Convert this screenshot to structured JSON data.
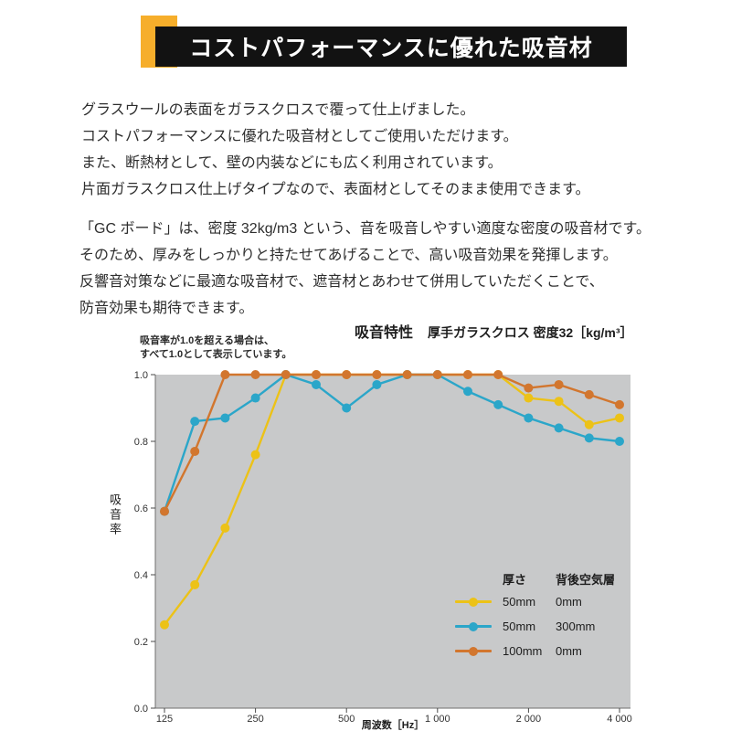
{
  "colors": {
    "accent": "#f6ae2b",
    "title_bg": "#121212"
  },
  "header": {
    "title": "コストパフォーマンスに優れた吸音材"
  },
  "intro": {
    "lines": [
      "グラスウールの表面をガラスクロスで覆って仕上げました。",
      "コストパフォーマンスに優れた吸音材としてご使用いただけます。",
      "また、断熱材として、壁の内装などにも広く利用されています。",
      "片面ガラスクロス仕上げタイプなので、表面材としてそのまま使用できます。"
    ]
  },
  "description": {
    "lines": [
      "「GC ボード」は、密度 32kg/m3 という、音を吸音しやすい適度な密度の吸音材です。",
      "そのため、厚みをしっかりと持たせてあげることで、高い吸音効果を発揮します。",
      "反響音対策などに最適な吸音材で、遮音材とあわせて併用していただくことで、",
      "防音効果も期待できます。"
    ]
  },
  "chart": {
    "title_main": "吸音特性",
    "title_sub": "厚手ガラスクロス 密度32［kg/m³］",
    "note_lines": [
      "吸音率が1.0を超える場合は、",
      "すべて1.0として表示しています。"
    ],
    "ylabel": "吸音率",
    "xlabel": "周波数［Hz］",
    "legend": {
      "thickness_header": "厚さ",
      "air_header": "背後空気層",
      "rows": [
        {
          "thickness": "50mm",
          "air": "0mm"
        },
        {
          "thickness": "50mm",
          "air": "300mm"
        },
        {
          "thickness": "100mm",
          "air": "0mm"
        }
      ]
    }
  },
  "chart_data": {
    "type": "line",
    "title": "吸音特性 厚手ガラスクロス 密度32［kg/m³］",
    "xlabel": "周波数［Hz］",
    "ylabel": "吸音率",
    "x_scale": "log (1/3 octave bands)",
    "plot_bg": "#c8c9ca",
    "grid": false,
    "legend_position": "inside bottom-right",
    "x": [
      125,
      160,
      200,
      250,
      315,
      400,
      500,
      630,
      800,
      1000,
      1250,
      1600,
      2000,
      2500,
      3150,
      4000
    ],
    "ylim": [
      0,
      1.0
    ],
    "x_ticks": [
      {
        "f": 125,
        "label": "125"
      },
      {
        "f": 250,
        "label": "250"
      },
      {
        "f": 500,
        "label": "500"
      },
      {
        "f": 1000,
        "label": "1 000"
      },
      {
        "f": 2000,
        "label": "2 000"
      },
      {
        "f": 4000,
        "label": "4 000"
      }
    ],
    "y_ticks": [
      {
        "v": 0,
        "label": "0.0"
      },
      {
        "v": 0.2,
        "label": "0.2"
      },
      {
        "v": 0.4,
        "label": "0.4"
      },
      {
        "v": 0.6,
        "label": "0.6"
      },
      {
        "v": 0.8,
        "label": "0.8"
      },
      {
        "v": 1.0,
        "label": "1.0"
      }
    ],
    "series": [
      {
        "name": "厚さ50mm 背後空気層0mm",
        "color": "#ecc217",
        "values": [
          0.25,
          0.37,
          0.54,
          0.76,
          1.0,
          1.0,
          1.0,
          1.0,
          1.0,
          1.0,
          1.0,
          1.0,
          0.93,
          0.92,
          0.85,
          0.87
        ]
      },
      {
        "name": "厚さ50mm 背後空気層300mm",
        "color": "#2ba6c9",
        "values": [
          0.59,
          0.86,
          0.87,
          0.93,
          1.0,
          0.97,
          0.9,
          0.97,
          1.0,
          1.0,
          0.95,
          0.91,
          0.87,
          0.84,
          0.81,
          0.8
        ]
      },
      {
        "name": "厚さ100mm 背後空気層0mm",
        "color": "#d2762e",
        "values": [
          0.59,
          0.77,
          1.0,
          1.0,
          1.0,
          1.0,
          1.0,
          1.0,
          1.0,
          1.0,
          1.0,
          1.0,
          0.96,
          0.97,
          0.94,
          0.91
        ]
      }
    ]
  }
}
